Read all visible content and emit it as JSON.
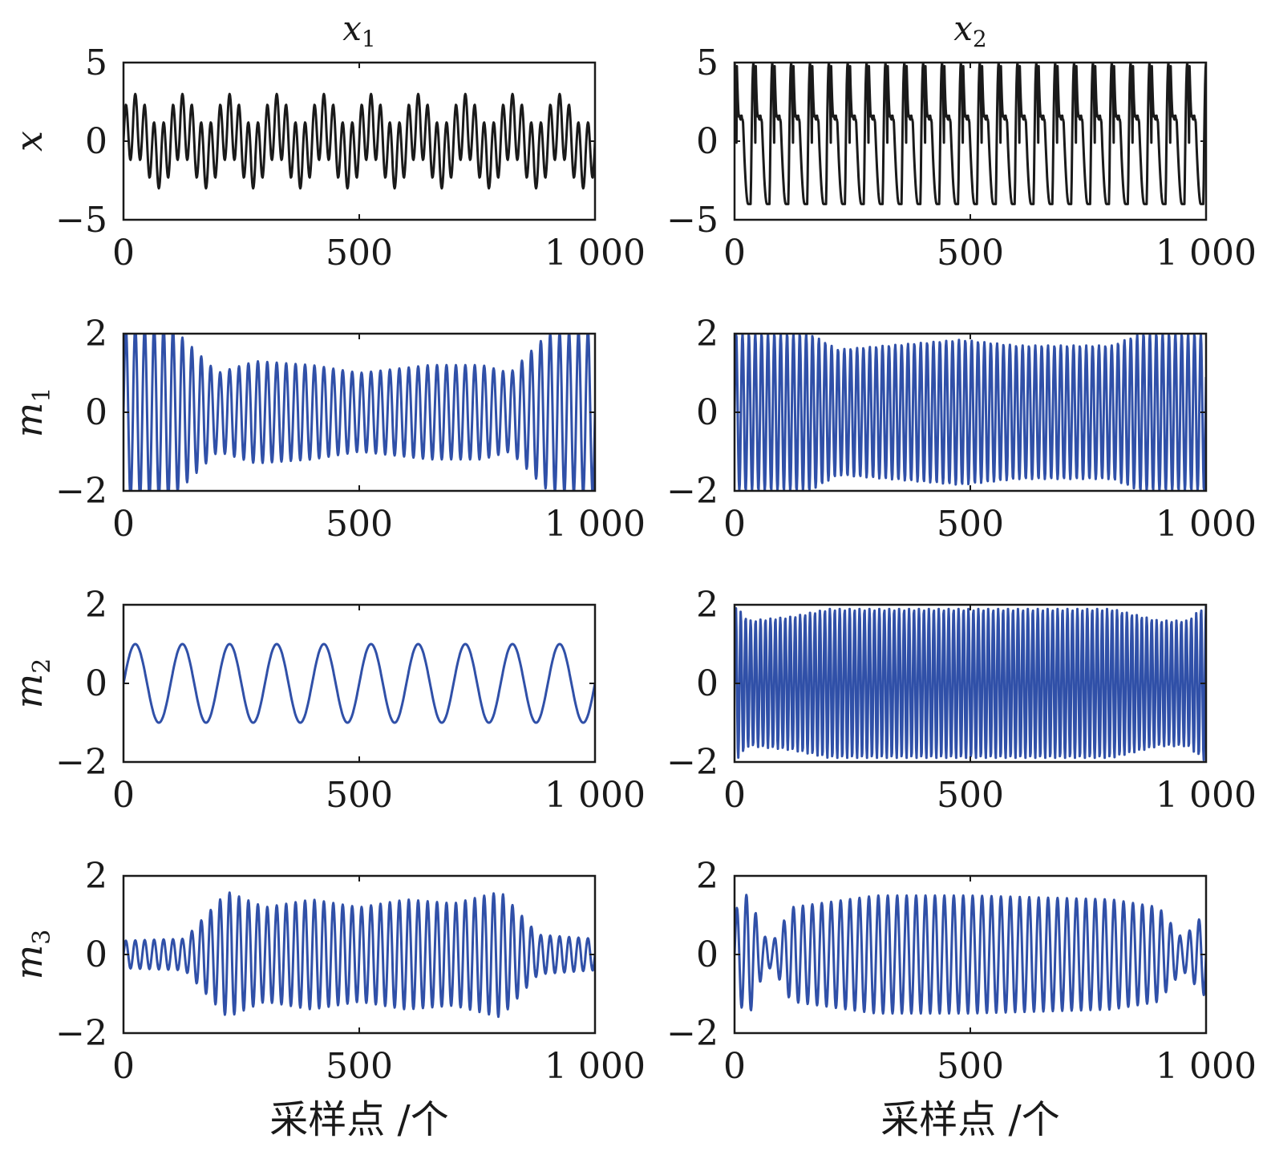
{
  "colors": {
    "signal": "#1a1a1a",
    "component": "#3050a8",
    "axes": "#1a1a1a"
  },
  "chart_data": {
    "type": "line",
    "columns": [
      {
        "title": {
          "base": "x",
          "sub": "1"
        },
        "xlabel": "采样点 /个"
      },
      {
        "title": {
          "base": "x",
          "sub": "2"
        },
        "xlabel": "采样点 /个"
      }
    ],
    "rows": [
      {
        "label": {
          "base": "x",
          "sub": ""
        },
        "ylim": [
          -5,
          5
        ],
        "yticks": [
          "5",
          "0",
          "−5"
        ],
        "color": "signal"
      },
      {
        "label": {
          "base": "m",
          "sub": "1"
        },
        "ylim": [
          -2,
          2
        ],
        "yticks": [
          "2",
          "0",
          "−2"
        ],
        "color": "component"
      },
      {
        "label": {
          "base": "m",
          "sub": "2"
        },
        "ylim": [
          -2,
          2
        ],
        "yticks": [
          "2",
          "0",
          "−2"
        ],
        "color": "component"
      },
      {
        "label": {
          "base": "m",
          "sub": "3"
        },
        "ylim": [
          -2,
          2
        ],
        "yticks": [
          "2",
          "0",
          "−2"
        ],
        "color": "component"
      }
    ],
    "xlim": [
      0,
      1000
    ],
    "xticks": [
      "0",
      "500",
      "1 000"
    ],
    "n_samples": 1000,
    "panels": [
      {
        "col": 0,
        "row": 0,
        "series": "x1",
        "model": "sum",
        "components": [
          {
            "amp": 2.0,
            "period": 20
          },
          {
            "amp": 1.0,
            "period": 100
          }
        ]
      },
      {
        "col": 0,
        "row": 1,
        "series": "x1 m1",
        "model": "am",
        "period": 20,
        "amp_env": [
          [
            0,
            2.2
          ],
          [
            100,
            2.2
          ],
          [
            200,
            1.0
          ],
          [
            280,
            1.3
          ],
          [
            400,
            1.2
          ],
          [
            500,
            1.0
          ],
          [
            650,
            1.2
          ],
          [
            760,
            1.2
          ],
          [
            820,
            1.0
          ],
          [
            900,
            2.0
          ],
          [
            1000,
            2.1
          ]
        ]
      },
      {
        "col": 0,
        "row": 2,
        "series": "x1 m2",
        "model": "sine",
        "amp": 1.0,
        "period": 100
      },
      {
        "col": 0,
        "row": 3,
        "series": "x1 m3",
        "model": "am",
        "period": 20,
        "amp_env": [
          [
            0,
            0.35
          ],
          [
            130,
            0.4
          ],
          [
            220,
            1.6
          ],
          [
            300,
            1.2
          ],
          [
            400,
            1.4
          ],
          [
            500,
            1.2
          ],
          [
            600,
            1.4
          ],
          [
            700,
            1.3
          ],
          [
            800,
            1.6
          ],
          [
            880,
            0.5
          ],
          [
            1000,
            0.4
          ]
        ]
      },
      {
        "col": 1,
        "row": 0,
        "series": "x2",
        "model": "clipped",
        "period": 40,
        "high": 5.0,
        "low": -4.0,
        "shelf": 1.5
      },
      {
        "col": 1,
        "row": 1,
        "series": "x2 m1",
        "model": "am",
        "period": 13.5,
        "amp_env": [
          [
            0,
            2.0
          ],
          [
            160,
            2.0
          ],
          [
            220,
            1.6
          ],
          [
            480,
            1.85
          ],
          [
            600,
            1.7
          ],
          [
            800,
            1.7
          ],
          [
            860,
            2.0
          ],
          [
            1000,
            2.0
          ]
        ]
      },
      {
        "col": 1,
        "row": 2,
        "series": "x2 m2",
        "model": "am",
        "period": 10.5,
        "amp_env": [
          [
            0,
            2.0
          ],
          [
            30,
            1.6
          ],
          [
            120,
            1.7
          ],
          [
            200,
            1.9
          ],
          [
            800,
            1.9
          ],
          [
            900,
            1.6
          ],
          [
            960,
            1.6
          ],
          [
            1000,
            2.0
          ]
        ]
      },
      {
        "col": 1,
        "row": 3,
        "series": "x2 m3",
        "model": "am",
        "period": 20,
        "amp_env": [
          [
            0,
            1.1
          ],
          [
            30,
            1.6
          ],
          [
            60,
            0.5
          ],
          [
            80,
            0.3
          ],
          [
            120,
            1.2
          ],
          [
            180,
            1.3
          ],
          [
            300,
            1.5
          ],
          [
            500,
            1.5
          ],
          [
            800,
            1.4
          ],
          [
            900,
            1.2
          ],
          [
            950,
            0.4
          ],
          [
            1000,
            1.1
          ]
        ]
      }
    ]
  }
}
